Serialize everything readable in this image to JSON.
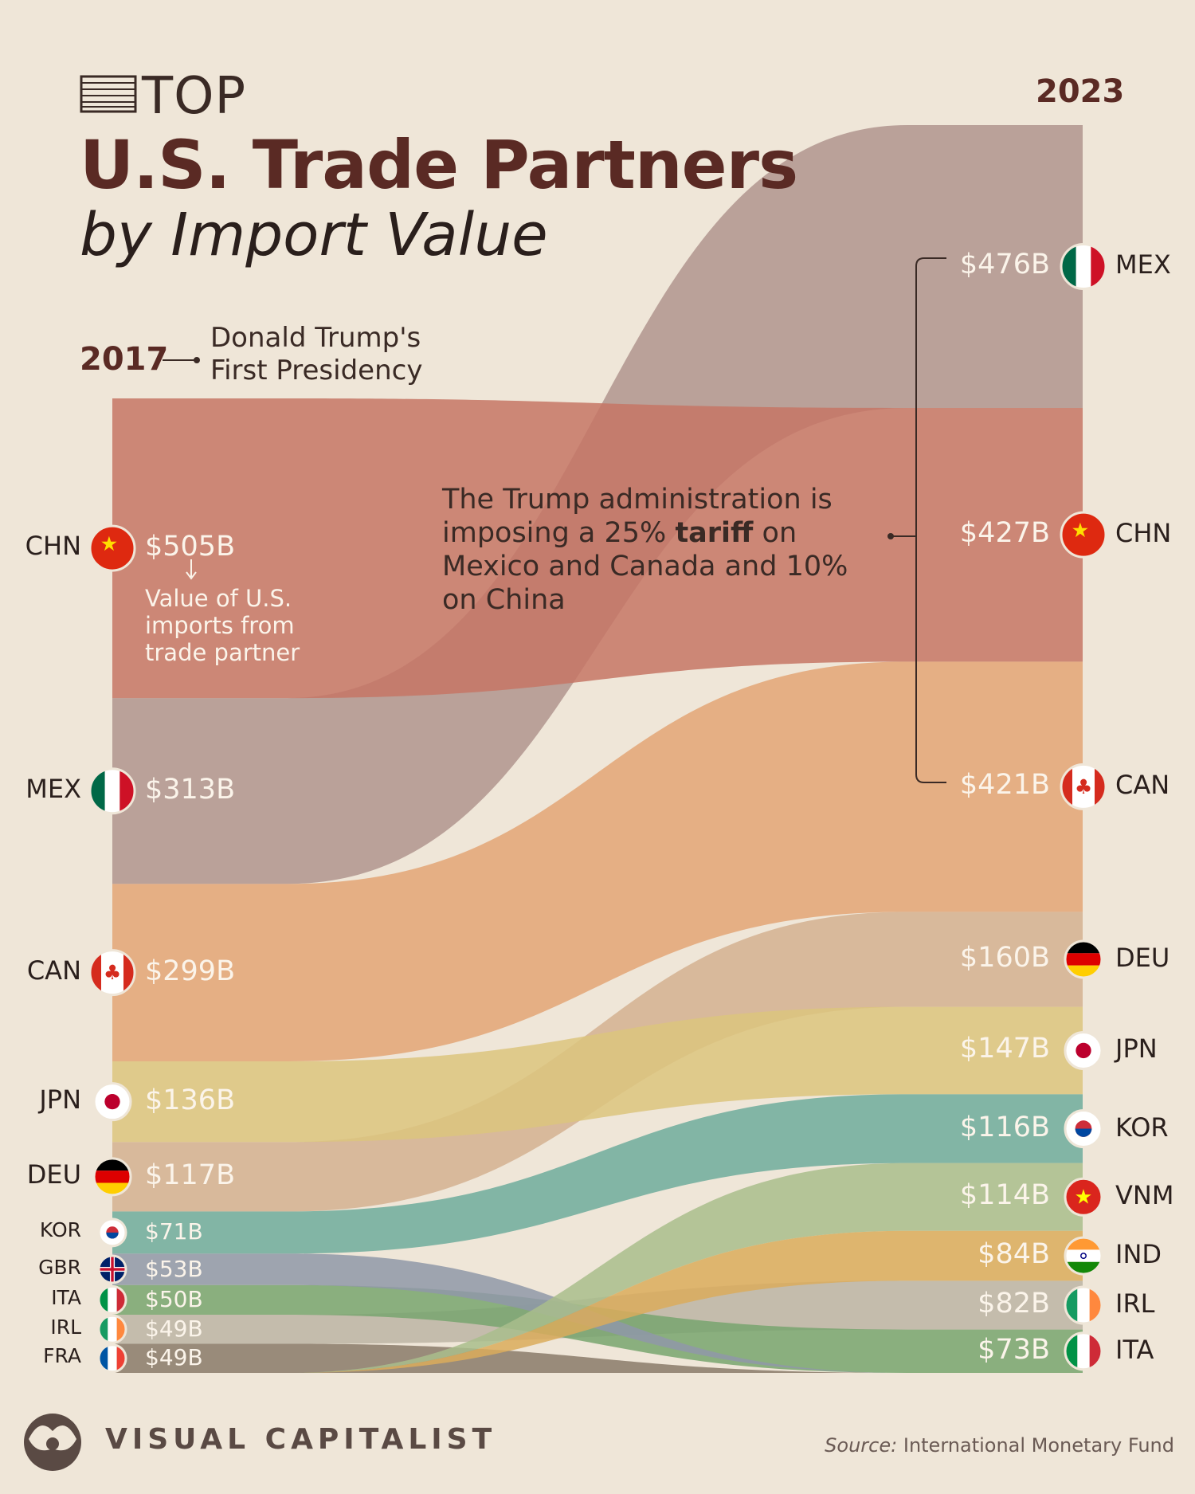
{
  "header": {
    "top_label": "TOP",
    "title": "U.S. Trade Partners",
    "subtitle": "by Import Value",
    "year_left": "2017",
    "year_right": "2023",
    "presidency_note": "Donald Trump's First Presidency",
    "tariff_note_part1": "The Trump administration is imposing a 25% ",
    "tariff_note_bold": "tariff",
    "tariff_note_part2": " on Mexico and Canada and 10% on China",
    "value_explainer": "Value of U.S. imports from trade partner"
  },
  "footer": {
    "brand": "VISUAL CAPITALIST",
    "source_label": "Source:",
    "source_text": "International Monetary Fund"
  },
  "chart_data": {
    "type": "sankey",
    "unit": "$B",
    "left_year": "2017",
    "right_year": "2023",
    "left": [
      {
        "code": "CHN",
        "label": "$505B",
        "value": 505,
        "color": "#c67565",
        "flag": "china-flag"
      },
      {
        "code": "MEX",
        "label": "$313B",
        "value": 313,
        "color": "#b0948e",
        "flag": "mexico-flag"
      },
      {
        "code": "CAN",
        "label": "$299B",
        "value": 299,
        "color": "#e3a476",
        "flag": "canada-flag"
      },
      {
        "code": "JPN",
        "label": "$136B",
        "value": 136,
        "color": "#dcc47e",
        "flag": "japan-flag"
      },
      {
        "code": "DEU",
        "label": "$117B",
        "value": 117,
        "color": "#d3b091",
        "flag": "germany-flag"
      },
      {
        "code": "KOR",
        "label": "$71B",
        "value": 71,
        "color": "#6fac9c",
        "flag": "korea-flag"
      },
      {
        "code": "GBR",
        "label": "$53B",
        "value": 53,
        "color": "#8f98a8",
        "flag": "uk-flag"
      },
      {
        "code": "ITA",
        "label": "$50B",
        "value": 50,
        "color": "#78a46e",
        "flag": "italy-flag"
      },
      {
        "code": "IRL",
        "label": "$49B",
        "value": 49,
        "color": "#bcb4a4",
        "flag": "ireland-flag"
      },
      {
        "code": "FRA",
        "label": "$49B",
        "value": 49,
        "color": "#8a7a6a",
        "flag": "france-flag"
      }
    ],
    "right": [
      {
        "code": "MEX",
        "label": "$476B",
        "value": 476,
        "color": "#b0948e",
        "flag": "mexico-flag"
      },
      {
        "code": "CHN",
        "label": "$427B",
        "value": 427,
        "color": "#c67565",
        "flag": "china-flag"
      },
      {
        "code": "CAN",
        "label": "$421B",
        "value": 421,
        "color": "#e3a476",
        "flag": "canada-flag"
      },
      {
        "code": "DEU",
        "label": "$160B",
        "value": 160,
        "color": "#d3b091",
        "flag": "germany-flag"
      },
      {
        "code": "JPN",
        "label": "$147B",
        "value": 147,
        "color": "#dcc47e",
        "flag": "japan-flag"
      },
      {
        "code": "KOR",
        "label": "$116B",
        "value": 116,
        "color": "#6fac9c",
        "flag": "korea-flag"
      },
      {
        "code": "VNM",
        "label": "$114B",
        "value": 114,
        "color": "#a9bd8c",
        "flag": "vietnam-flag"
      },
      {
        "code": "IND",
        "label": "$84B",
        "value": 84,
        "color": "#dbac5c",
        "flag": "india-flag"
      },
      {
        "code": "IRL",
        "label": "$82B",
        "value": 82,
        "color": "#bcb4a4",
        "flag": "ireland-flag"
      },
      {
        "code": "ITA",
        "label": "$73B",
        "value": 73,
        "color": "#78a46e",
        "flag": "italy-flag"
      }
    ]
  }
}
